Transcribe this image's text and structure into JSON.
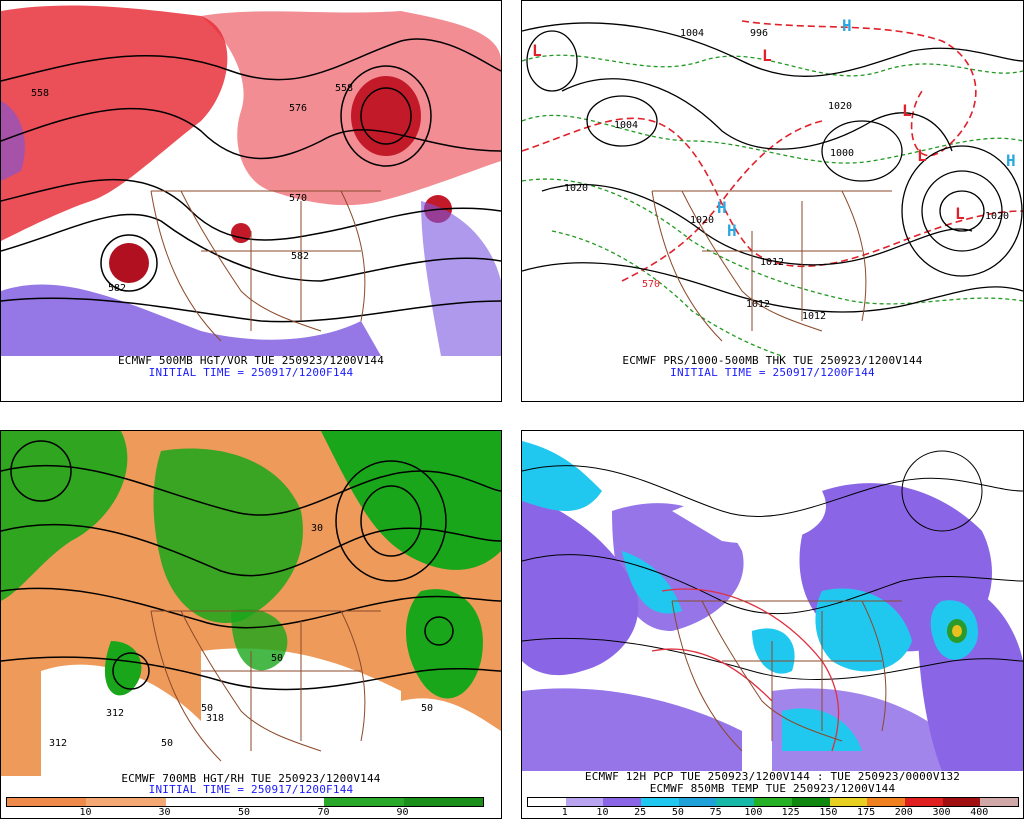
{
  "panels": [
    {
      "id": "p1",
      "line1": "ECMWF 500MB HGT/VOR TUE 250923/1200V144",
      "line2": "INITIAL TIME = 250917/1200F144",
      "contour_labels": [
        "558",
        "576",
        "558",
        "570",
        "582",
        "582"
      ]
    },
    {
      "id": "p2",
      "line1": "ECMWF PRS/1000-500MB THK TUE 250923/1200V144",
      "line2": "INITIAL TIME = 250917/1200F144",
      "contour_labels": [
        "1004",
        "996",
        "1004",
        "1020",
        "1020",
        "1012",
        "1012",
        "1012",
        "1020",
        "570",
        "1000",
        "1020"
      ],
      "symbols": [
        "L",
        "L",
        "L",
        "L",
        "H",
        "H",
        "H",
        "H",
        "L"
      ]
    },
    {
      "id": "p3",
      "line1": "ECMWF 700MB HGT/RH TUE 250923/1200V144",
      "line2": "INITIAL TIME = 250917/1200F144",
      "contour_labels": [
        "312",
        "312",
        "50",
        "50",
        "30",
        "50",
        "318",
        "50"
      ],
      "colorbar_ticks": [
        "10",
        "30",
        "50",
        "70",
        "90"
      ]
    },
    {
      "id": "p4",
      "line1": "ECMWF 12H PCP TUE 250923/1200V144 : TUE 250923/0000V132",
      "line2": "ECMWF 850MB TEMP TUE 250923/1200V144",
      "colorbar_ticks": [
        "1",
        "10",
        "25",
        "50",
        "75",
        "100",
        "125",
        "150",
        "175",
        "200",
        "300",
        "400"
      ]
    }
  ],
  "colors": {
    "vort_red": "#e8303a",
    "vort_purple": "#7a55e0",
    "rh_orange": "#ee9a5a",
    "rh_green": "#1aa61a",
    "pcp_purple": "#8a66e6",
    "pcp_cyan": "#20c8f0",
    "thk_red": "#e0202a",
    "thk_green": "#229922",
    "border_brown": "#8b4a2b"
  }
}
